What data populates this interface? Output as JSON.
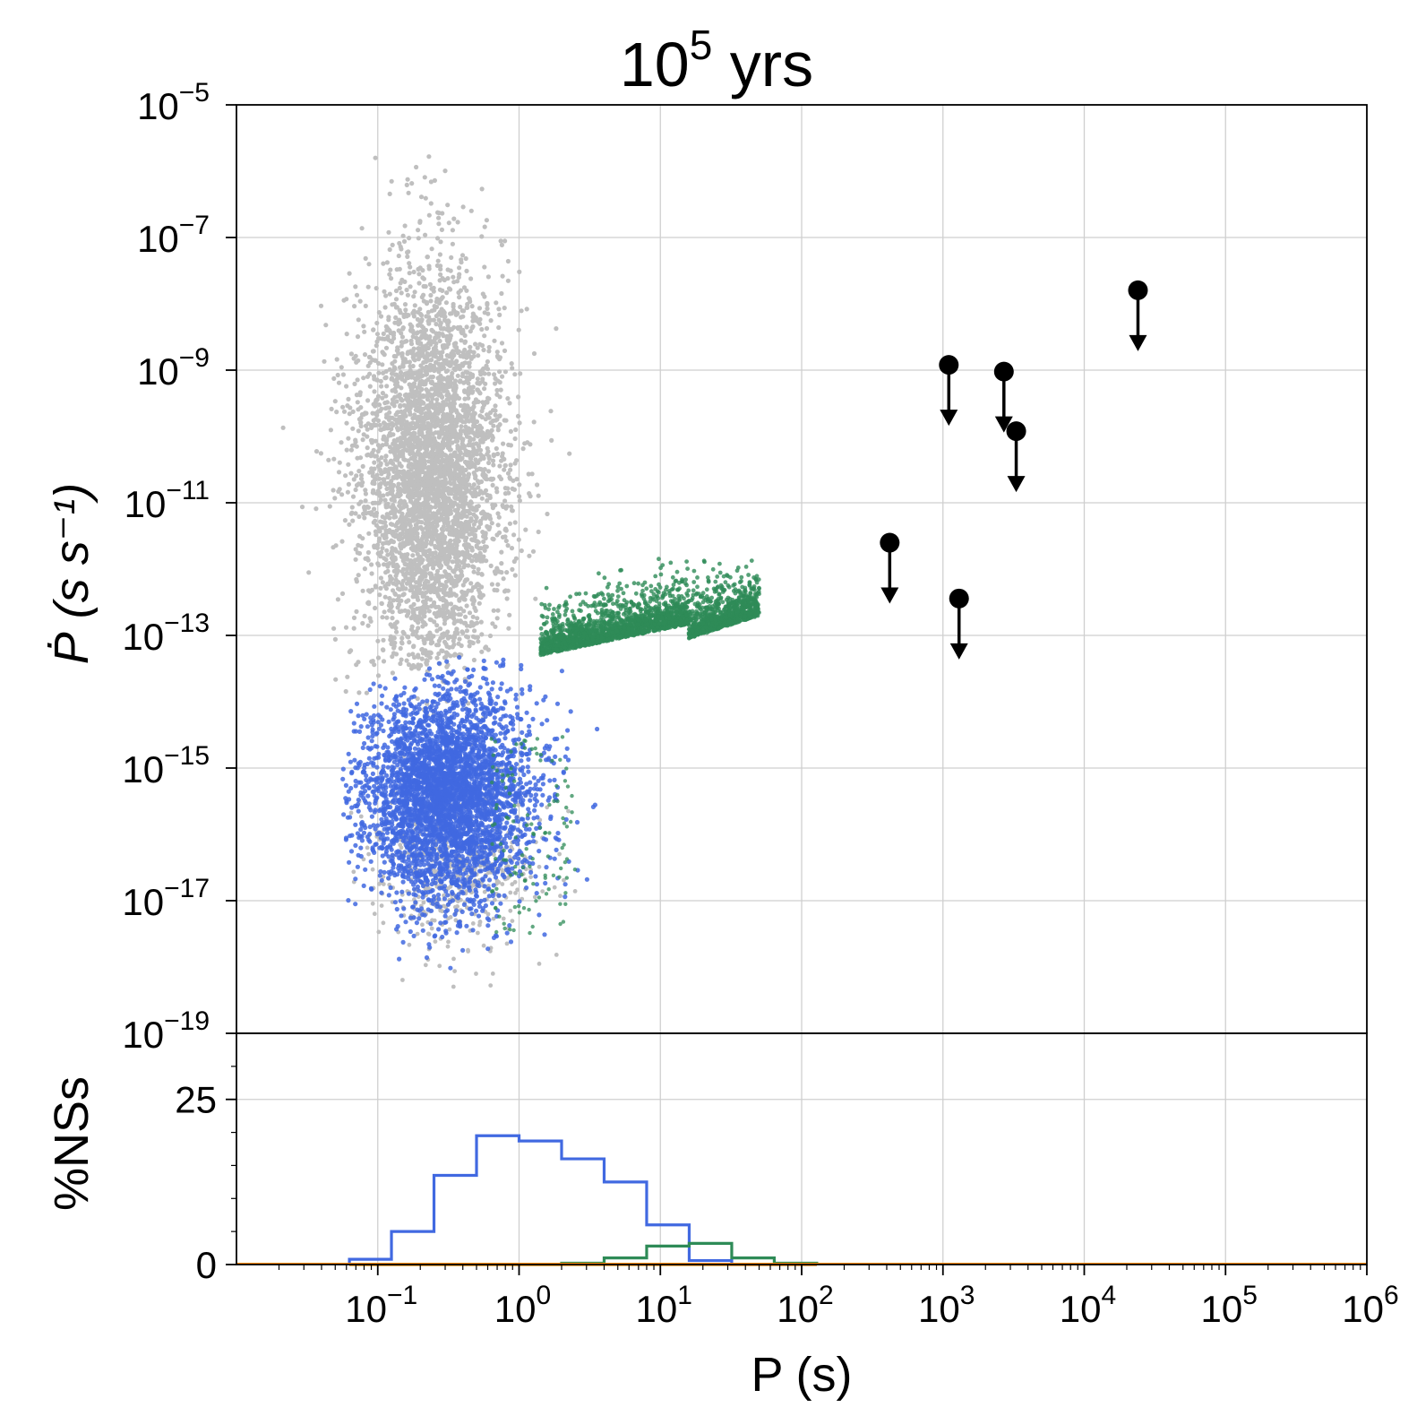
{
  "figure": {
    "title_base": "10",
    "title_exp": "5",
    "title_suffix": " yrs"
  },
  "chart_data": [
    {
      "type": "scatter",
      "panel": "top",
      "xlabel": "P (s)",
      "ylabel": "Ṗ (s s⁻¹)",
      "x_scale": "log",
      "y_scale": "log",
      "xlim": [
        0.01,
        1000000
      ],
      "ylim": [
        1e-19,
        1e-05
      ],
      "grid": true,
      "x_tick_labels": [
        {
          "base": "10",
          "exp": "−1",
          "value": 0.1
        },
        {
          "base": "10",
          "exp": "0",
          "value": 1
        },
        {
          "base": "10",
          "exp": "1",
          "value": 10
        },
        {
          "base": "10",
          "exp": "2",
          "value": 100
        },
        {
          "base": "10",
          "exp": "3",
          "value": 1000
        },
        {
          "base": "10",
          "exp": "4",
          "value": 10000
        },
        {
          "base": "10",
          "exp": "5",
          "value": 100000
        },
        {
          "base": "10",
          "exp": "6",
          "value": 1000000
        }
      ],
      "y_tick_labels": [
        {
          "base": "10",
          "exp": "−5",
          "value": 1e-05
        },
        {
          "base": "10",
          "exp": "−7",
          "value": 1e-07
        },
        {
          "base": "10",
          "exp": "−9",
          "value": 1e-09
        },
        {
          "base": "10",
          "exp": "−11",
          "value": 1e-11
        },
        {
          "base": "10",
          "exp": "−13",
          "value": 1e-13
        },
        {
          "base": "10",
          "exp": "−15",
          "value": 1e-15
        },
        {
          "base": "10",
          "exp": "−17",
          "value": 1e-17
        },
        {
          "base": "10",
          "exp": "−19",
          "value": 1e-19
        }
      ],
      "series": [
        {
          "color": "#bfbfbf",
          "population": "grey cloud",
          "approx_extent": {
            "P": [
              0.015,
              4
            ],
            "Pdot": [
              7e-19,
              3e-06
            ]
          }
        },
        {
          "color": "#4169e1",
          "population": "blue",
          "approx_extent": {
            "P": [
              0.06,
              10
            ],
            "Pdot": [
              1e-18,
              5e-13
            ]
          }
        },
        {
          "color": "#2e8b57",
          "population": "green",
          "approx_extent": {
            "P": [
              0.5,
              140
            ],
            "Pdot": [
              1e-18,
              2e-11
            ]
          }
        },
        {
          "color": "#000000",
          "population": "upper limits",
          "points": [
            {
              "P": 420,
              "Pdot": 2.5e-12
            },
            {
              "P": 1100,
              "Pdot": 1.2e-09
            },
            {
              "P": 1300,
              "Pdot": 3.6e-13
            },
            {
              "P": 2700,
              "Pdot": 9.5e-10
            },
            {
              "P": 3300,
              "Pdot": 1.2e-10
            },
            {
              "P": 24000,
              "Pdot": 1.6e-08
            }
          ]
        }
      ]
    },
    {
      "type": "histogram",
      "panel": "bottom",
      "xlabel": "P (s)",
      "ylabel": "%NSs",
      "x_scale": "log",
      "ylim": [
        0,
        35
      ],
      "y_tick_labels": [
        "0",
        "25"
      ],
      "y_ticks": [
        0,
        25
      ],
      "bin_edges": [
        0.063,
        0.125,
        0.25,
        0.5,
        1.0,
        2.0,
        4.0,
        8.0,
        16.0,
        32.0,
        64.0,
        128.0
      ],
      "series": [
        {
          "color": "#4169e1",
          "values": [
            0.8,
            5.0,
            13.5,
            19.5,
            18.7,
            16.0,
            12.5,
            6.0,
            0.6,
            0,
            0
          ]
        },
        {
          "color": "#2e8b57",
          "values": [
            0,
            0,
            0,
            0,
            0,
            0.2,
            1.0,
            2.8,
            3.2,
            1.0,
            0.2
          ]
        },
        {
          "color": "#ff8c00",
          "values": [
            0,
            0,
            0,
            0,
            0,
            0,
            0,
            0,
            0,
            0,
            0
          ]
        }
      ]
    }
  ]
}
